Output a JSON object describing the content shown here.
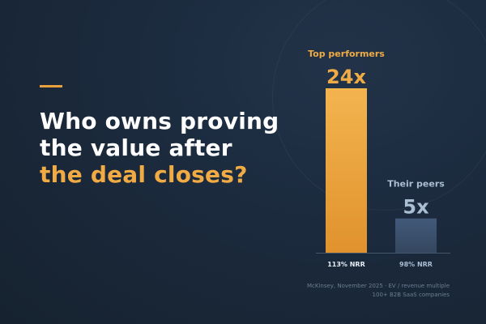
{
  "headline": {
    "line1": "Who owns proving",
    "line2": "the value after",
    "line3_highlight": "the deal closes?"
  },
  "chart_data": {
    "type": "bar",
    "categories": [
      "Top performers",
      "Their peers"
    ],
    "values": [
      24,
      5
    ],
    "value_labels": [
      "24x",
      "5x"
    ],
    "category_sublabels": [
      "113% NRR",
      "98% NRR"
    ],
    "ylim": [
      0,
      24
    ],
    "grid": false,
    "legend": "none",
    "colors": [
      "#f0ab45",
      "#3e5470"
    ]
  },
  "source": {
    "line1": "McKinsey, November 2025 · EV / revenue multiple",
    "line2": "100+ B2B SaaS companies"
  },
  "colors": {
    "accent": "#f0ab45",
    "peer_bar": "#3e5470",
    "peer_text": "#a9bdd3"
  }
}
